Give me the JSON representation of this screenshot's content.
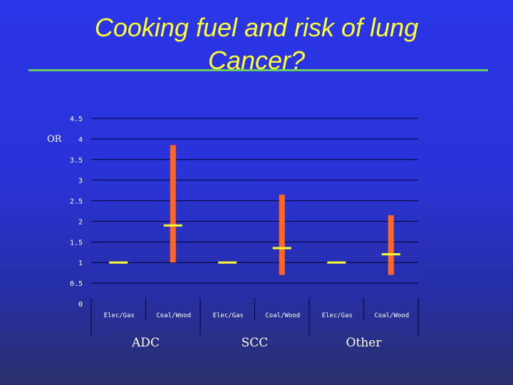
{
  "slide": {
    "title": "Cooking fuel and risk of lung Cancer?"
  },
  "chart_data": {
    "type": "error-bar",
    "ylabel": "OR",
    "ylim": [
      0,
      4.5
    ],
    "yticks": [
      "4.5",
      "4",
      "3.5",
      "3",
      "2.5",
      "2",
      "1.5",
      "1",
      "0.5",
      "0"
    ],
    "grid": true,
    "groups": [
      {
        "name": "ADC",
        "categories": [
          {
            "label": "Elec/Gas",
            "or": 1.0
          },
          {
            "label": "Coal/Wood",
            "or": 1.9,
            "ci_low": 1.0,
            "ci_high": 3.85
          }
        ]
      },
      {
        "name": "SCC",
        "categories": [
          {
            "label": "Elec/Gas",
            "or": 1.0
          },
          {
            "label": "Coal/Wood",
            "or": 1.35,
            "ci_low": 0.7,
            "ci_high": 2.65
          }
        ]
      },
      {
        "name": "Other",
        "categories": [
          {
            "label": "Elec/Gas",
            "or": 1.0
          },
          {
            "label": "Coal/Wood",
            "or": 1.2,
            "ci_low": 0.7,
            "ci_high": 2.15
          }
        ]
      }
    ],
    "colors": {
      "estimate": "#ffff33",
      "ci": "#ff6622",
      "grid": "#000033",
      "text": "#ffffff"
    }
  }
}
